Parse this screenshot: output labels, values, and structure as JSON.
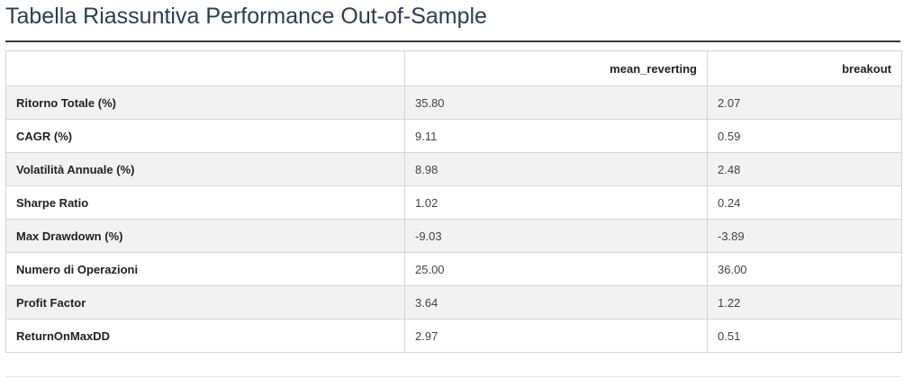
{
  "page": {
    "title": "Tabella Riassuntiva Performance Out-of-Sample"
  },
  "table": {
    "columns": [
      "",
      "mean_reverting",
      "breakout"
    ],
    "rows": [
      {
        "label": "Ritorno Totale (%)",
        "values": [
          "35.80",
          "2.07"
        ]
      },
      {
        "label": "CAGR (%)",
        "values": [
          "9.11",
          "0.59"
        ]
      },
      {
        "label": "Volatilità Annuale (%)",
        "values": [
          "8.98",
          "2.48"
        ]
      },
      {
        "label": "Sharpe Ratio",
        "values": [
          "1.02",
          "0.24"
        ]
      },
      {
        "label": "Max Drawdown (%)",
        "values": [
          "-9.03",
          "-3.89"
        ]
      },
      {
        "label": "Numero di Operazioni",
        "values": [
          "25.00",
          "36.00"
        ]
      },
      {
        "label": "Profit Factor",
        "values": [
          "3.64",
          "1.22"
        ]
      },
      {
        "label": "ReturnOnMaxDD",
        "values": [
          "2.97",
          "0.51"
        ]
      }
    ]
  },
  "colors": {
    "title": "#2c3e50",
    "stripe": "#f2f2f2",
    "border": "#d4d4d4"
  }
}
